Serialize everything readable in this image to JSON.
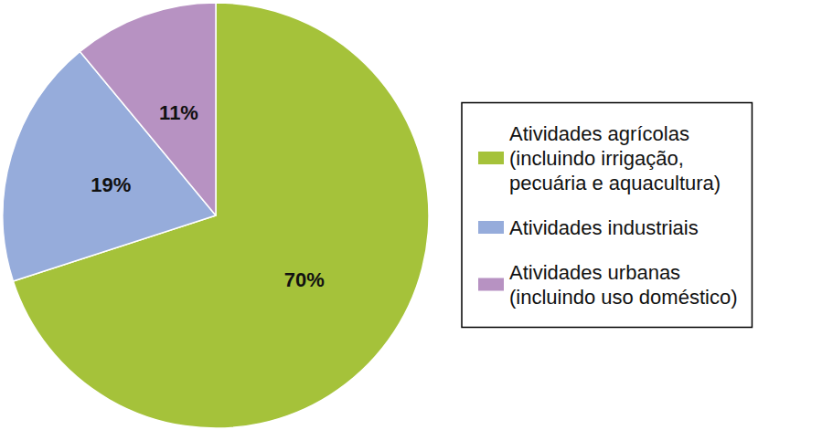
{
  "chart_data": {
    "type": "pie",
    "categories": [
      "Atividades agrícolas\n(incluindo irrigação,\npecuária e aquacultura)",
      "Atividades industriais",
      "Atividades urbanas\n(incluindo uso doméstico)"
    ],
    "values": [
      70,
      19,
      11
    ],
    "value_labels": [
      "70%",
      "19%",
      "11%"
    ],
    "colors": [
      "#a5c23a",
      "#96acdb",
      "#b792c2"
    ],
    "data_labels": true,
    "legend": "right"
  }
}
